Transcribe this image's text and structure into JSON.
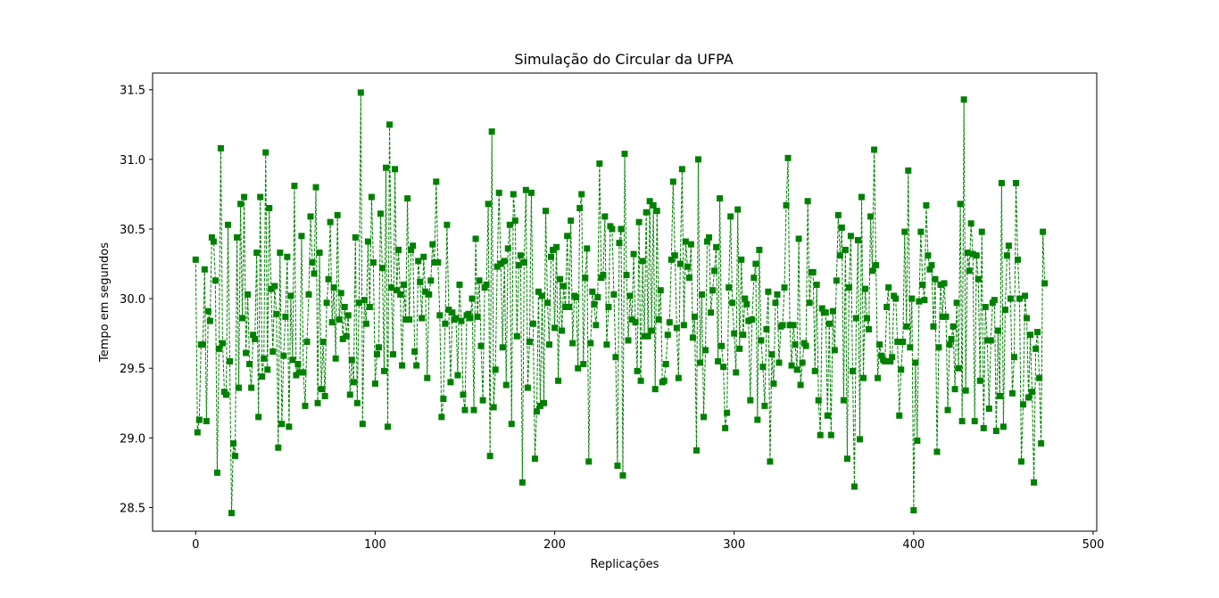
{
  "chart_data": {
    "type": "line",
    "title": "Simulação do Circular da UFPA",
    "xlabel": "Replicações",
    "ylabel": "Tempo em segundos",
    "xlim": [
      -24,
      502
    ],
    "ylim": [
      28.33,
      31.62
    ],
    "xticks": [
      0,
      100,
      200,
      300,
      400,
      500
    ],
    "yticks": [
      28.5,
      29.0,
      29.5,
      30.0,
      30.5,
      31.0,
      31.5
    ],
    "ytick_labels": [
      "28.5",
      "29.0",
      "29.5",
      "30.0",
      "30.5",
      "31.0",
      "31.5"
    ],
    "grid": false,
    "legend": "none",
    "series": [
      {
        "color": "#008000",
        "line_style": "dashed",
        "marker": "square",
        "x_start": 0,
        "x_step": 1,
        "values": [
          30.28,
          29.04,
          29.13,
          29.67,
          29.67,
          30.21,
          29.12,
          29.91,
          29.84,
          30.44,
          30.41,
          30.13,
          28.75,
          29.64,
          31.08,
          29.68,
          29.33,
          29.31,
          30.53,
          29.55,
          28.46,
          28.96,
          28.87,
          30.44,
          29.36,
          30.68,
          29.86,
          30.73,
          29.61,
          30.03,
          29.53,
          29.36,
          29.74,
          29.71,
          30.33,
          29.15,
          30.73,
          29.44,
          29.57,
          31.05,
          29.49,
          30.65,
          30.07,
          29.62,
          30.09,
          29.89,
          28.93,
          30.33,
          29.1,
          29.59,
          29.87,
          30.3,
          29.08,
          30.02,
          29.56,
          30.81,
          29.45,
          29.53,
          29.47,
          30.45,
          29.47,
          29.23,
          29.69,
          30.03,
          30.59,
          30.26,
          30.18,
          30.8,
          29.25,
          30.33,
          29.35,
          29.69,
          29.3,
          29.97,
          30.14,
          30.55,
          29.83,
          30.08,
          29.57,
          30.6,
          29.85,
          30.04,
          29.71,
          29.94,
          29.73,
          29.88,
          29.31,
          29.56,
          29.4,
          30.44,
          29.25,
          29.97,
          31.48,
          29.1,
          29.99,
          29.82,
          30.41,
          29.94,
          30.73,
          30.26,
          29.39,
          29.6,
          29.65,
          30.61,
          30.22,
          29.48,
          30.94,
          29.08,
          31.25,
          30.08,
          29.6,
          30.93,
          30.06,
          30.35,
          30.03,
          29.52,
          30.1,
          29.85,
          30.72,
          29.85,
          30.35,
          30.38,
          29.62,
          29.52,
          30.27,
          30.12,
          29.86,
          30.3,
          30.05,
          29.43,
          30.03,
          30.13,
          30.39,
          30.26,
          30.84,
          30.26,
          29.88,
          29.15,
          29.28,
          29.82,
          30.53,
          29.92,
          29.4,
          29.9,
          29.85,
          29.86,
          29.45,
          30.1,
          29.84,
          29.31,
          29.2,
          29.88,
          29.89,
          29.86,
          30.0,
          29.2,
          30.43,
          29.87,
          30.13,
          29.66,
          29.27,
          30.08,
          30.1,
          30.68,
          28.87,
          31.2,
          29.22,
          29.49,
          30.23,
          30.76,
          30.25,
          29.65,
          30.27,
          29.38,
          30.36,
          30.53,
          29.1,
          30.75,
          30.56,
          29.73,
          30.24,
          30.31,
          28.68,
          30.26,
          30.78,
          29.36,
          29.69,
          30.76,
          29.82,
          28.85,
          29.19,
          30.05,
          29.23,
          30.02,
          29.25,
          30.63,
          29.97,
          29.67,
          30.3,
          30.35,
          29.79,
          30.37,
          29.41,
          30.14,
          29.77,
          30.09,
          29.94,
          30.45,
          29.94,
          30.56,
          29.68,
          30.02,
          30.01,
          29.5,
          30.65,
          30.75,
          29.53,
          30.15,
          30.36,
          28.83,
          29.68,
          30.05,
          29.96,
          29.81,
          30.01,
          30.97,
          30.15,
          30.17,
          30.59,
          29.67,
          29.94,
          30.52,
          30.5,
          30.03,
          29.58,
          28.8,
          30.4,
          30.5,
          28.73,
          31.04,
          30.17,
          29.7,
          30.02,
          29.85,
          30.32,
          29.83,
          29.48,
          30.55,
          29.41,
          30.27,
          29.73,
          30.62,
          29.73,
          30.7,
          29.77,
          30.67,
          29.35,
          30.63,
          29.85,
          30.06,
          29.4,
          29.41,
          29.53,
          29.74,
          29.83,
          30.28,
          30.84,
          30.31,
          29.79,
          29.43,
          30.25,
          30.93,
          29.81,
          30.41,
          30.23,
          30.15,
          30.39,
          29.72,
          29.87,
          28.91,
          31.0,
          29.54,
          30.03,
          29.15,
          29.63,
          30.41,
          30.44,
          29.9,
          30.06,
          30.2,
          30.37,
          29.55,
          30.72,
          29.66,
          29.51,
          29.07,
          29.18,
          30.08,
          30.59,
          29.97,
          29.75,
          29.47,
          30.64,
          29.64,
          30.28,
          29.74,
          30.0,
          29.96,
          29.84,
          29.27,
          29.85,
          30.15,
          30.25,
          29.13,
          30.35,
          29.7,
          29.51,
          29.23,
          29.78,
          30.05,
          28.83,
          29.6,
          29.39,
          29.97,
          30.03,
          29.54,
          29.8,
          29.81,
          30.08,
          30.67,
          31.01,
          29.81,
          29.52,
          29.81,
          29.67,
          29.49,
          30.43,
          29.38,
          29.54,
          29.68,
          29.66,
          30.7,
          29.97,
          30.19,
          30.19,
          29.48,
          30.1,
          29.27,
          29.02,
          29.93,
          29.9,
          29.9,
          29.16,
          29.82,
          29.02,
          29.91,
          29.63,
          30.13,
          30.6,
          30.31,
          30.51,
          29.27,
          30.35,
          28.85,
          30.08,
          30.45,
          29.48,
          28.65,
          29.86,
          30.42,
          28.99,
          30.73,
          29.43,
          30.07,
          29.86,
          29.78,
          30.59,
          30.2,
          31.07,
          30.24,
          29.43,
          29.67,
          29.59,
          29.56,
          29.55,
          29.94,
          30.08,
          29.55,
          29.58,
          30.02,
          30.0,
          29.69,
          29.16,
          29.49,
          29.69,
          30.48,
          29.8,
          30.92,
          29.65,
          30.0,
          28.48,
          29.54,
          28.98,
          29.98,
          30.48,
          30.1,
          29.99,
          30.67,
          30.31,
          30.21,
          30.24,
          29.8,
          30.14,
          28.9,
          29.65,
          30.1,
          29.87,
          30.11,
          29.87,
          29.2,
          29.67,
          29.71,
          29.8,
          29.35,
          29.97,
          29.5,
          30.68,
          29.12,
          31.43,
          29.34,
          30.33,
          30.2,
          30.54,
          30.32,
          29.12,
          30.31,
          30.14,
          29.41,
          30.48,
          29.07,
          29.94,
          29.7,
          29.21,
          29.7,
          29.97,
          29.99,
          29.05,
          29.77,
          29.3,
          30.83,
          29.08,
          29.92,
          30.31,
          30.38,
          30.0,
          29.32,
          29.58,
          30.83,
          30.28,
          30.0,
          28.83,
          29.24,
          30.02,
          29.86,
          29.29,
          29.74,
          29.33,
          28.68,
          29.64,
          29.76,
          29.43,
          28.96,
          30.48,
          30.11
        ]
      }
    ]
  }
}
